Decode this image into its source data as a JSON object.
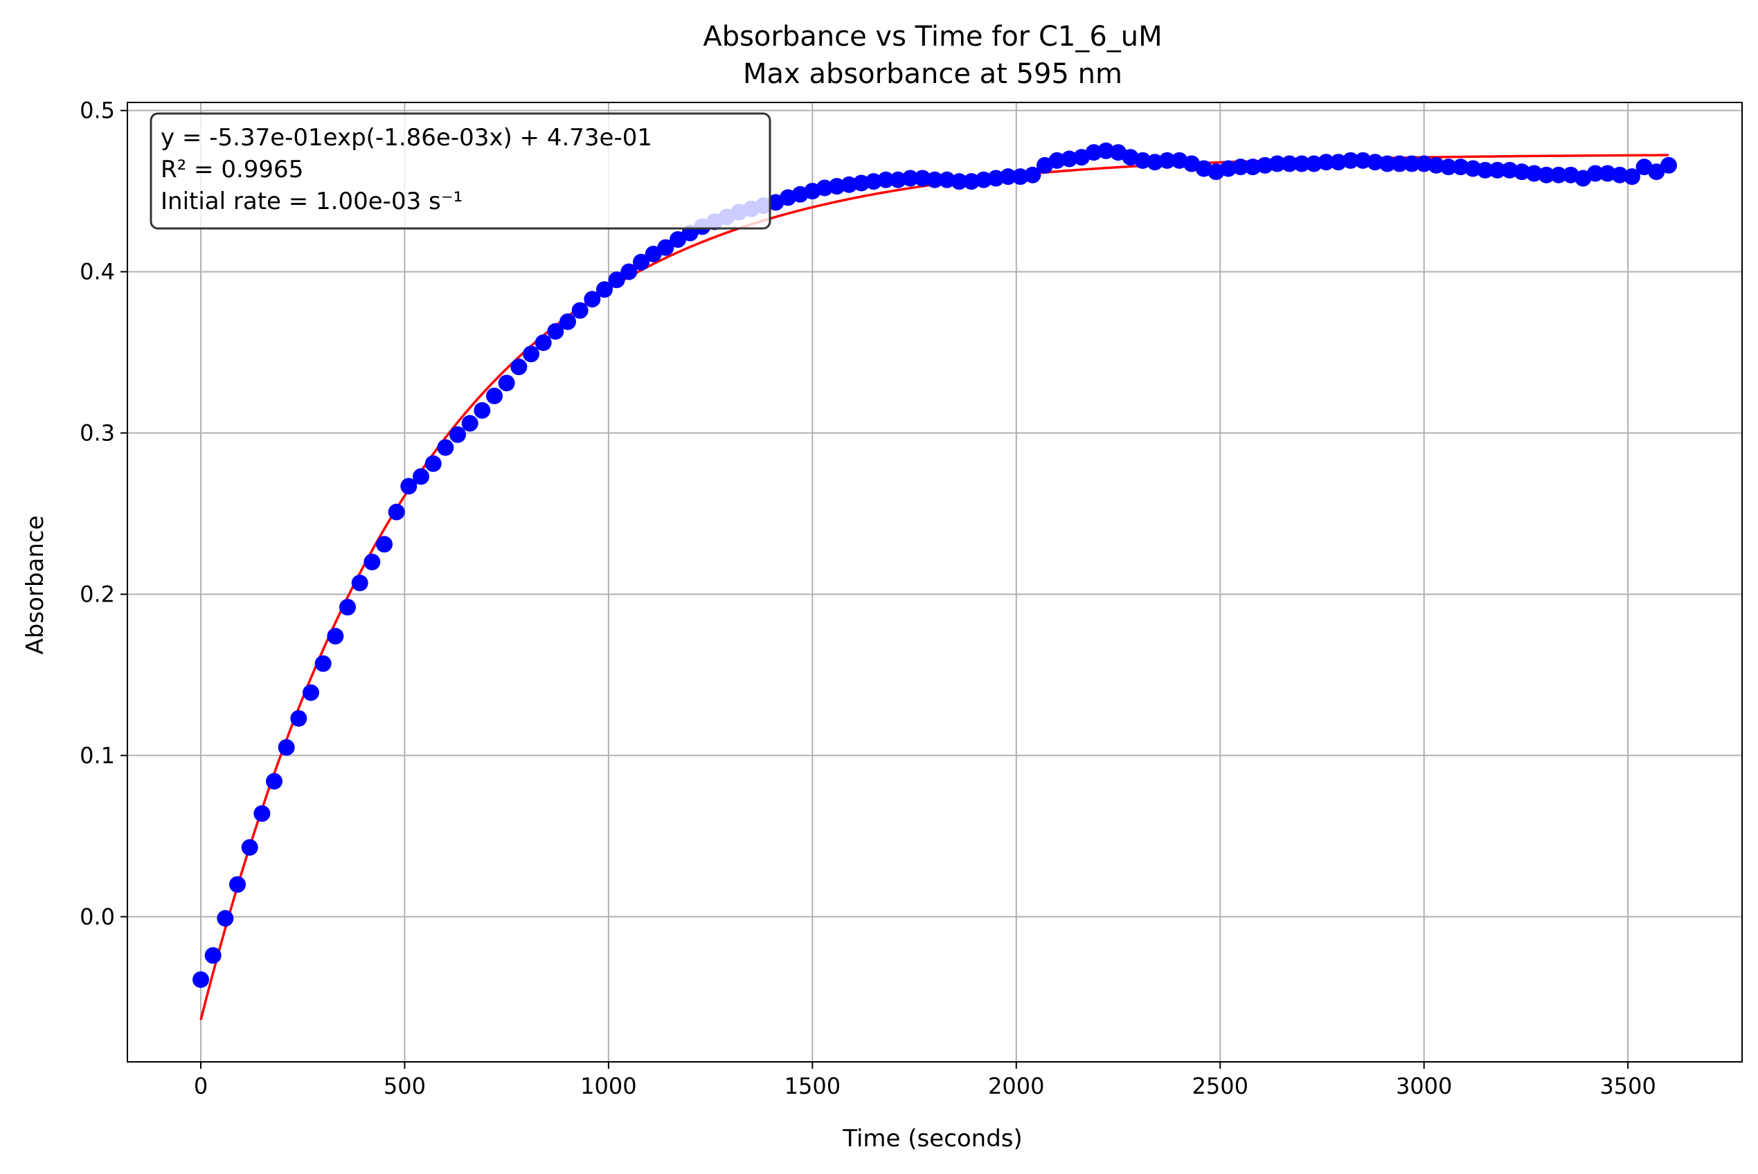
{
  "chart_data": {
    "type": "scatter",
    "title": "Absorbance vs Time for C1_6_uM",
    "subtitle": "Max absorbance at 595 nm",
    "xlabel": "Time (seconds)",
    "ylabel": "Absorbance",
    "xlim": [
      -180,
      3780
    ],
    "ylim": [
      -0.09,
      0.505
    ],
    "xticks": [
      0,
      500,
      1000,
      1500,
      2000,
      2500,
      3000,
      3500
    ],
    "xtick_labels": [
      "0",
      "500",
      "1000",
      "1500",
      "2000",
      "2500",
      "3000",
      "3500"
    ],
    "yticks": [
      0.0,
      0.1,
      0.2,
      0.3,
      0.4,
      0.5
    ],
    "ytick_labels": [
      "0.0",
      "0.1",
      "0.2",
      "0.3",
      "0.4",
      "0.5"
    ],
    "grid": true,
    "annotation": {
      "position": "top-left",
      "lines": [
        "y = -5.37e-01exp(-1.86e-03x) + 4.73e-01",
        "R² = 0.9965",
        "Initial rate = 1.00e-03 s⁻¹"
      ]
    },
    "series": [
      {
        "kind": "scatter",
        "color": "#0000ff",
        "points": [
          [
            0,
            -0.039
          ],
          [
            30,
            -0.024
          ],
          [
            60,
            -0.001
          ],
          [
            90,
            0.02
          ],
          [
            120,
            0.043
          ],
          [
            150,
            0.064
          ],
          [
            180,
            0.084
          ],
          [
            210,
            0.105
          ],
          [
            240,
            0.123
          ],
          [
            270,
            0.139
          ],
          [
            300,
            0.157
          ],
          [
            330,
            0.174
          ],
          [
            360,
            0.192
          ],
          [
            390,
            0.207
          ],
          [
            420,
            0.22
          ],
          [
            450,
            0.231
          ],
          [
            480,
            0.251
          ],
          [
            510,
            0.267
          ],
          [
            540,
            0.273
          ],
          [
            570,
            0.281
          ],
          [
            600,
            0.291
          ],
          [
            630,
            0.299
          ],
          [
            660,
            0.306
          ],
          [
            690,
            0.314
          ],
          [
            720,
            0.323
          ],
          [
            750,
            0.331
          ],
          [
            780,
            0.341
          ],
          [
            810,
            0.349
          ],
          [
            840,
            0.356
          ],
          [
            870,
            0.363
          ],
          [
            900,
            0.369
          ],
          [
            930,
            0.376
          ],
          [
            960,
            0.383
          ],
          [
            990,
            0.389
          ],
          [
            1020,
            0.395
          ],
          [
            1050,
            0.4
          ],
          [
            1080,
            0.406
          ],
          [
            1110,
            0.411
          ],
          [
            1140,
            0.415
          ],
          [
            1170,
            0.42
          ],
          [
            1200,
            0.424
          ],
          [
            1230,
            0.428
          ],
          [
            1260,
            0.431
          ],
          [
            1290,
            0.434
          ],
          [
            1320,
            0.437
          ],
          [
            1350,
            0.439
          ],
          [
            1380,
            0.441
          ],
          [
            1410,
            0.443
          ],
          [
            1440,
            0.446
          ],
          [
            1470,
            0.448
          ],
          [
            1500,
            0.45
          ],
          [
            1530,
            0.452
          ],
          [
            1560,
            0.453
          ],
          [
            1590,
            0.454
          ],
          [
            1620,
            0.455
          ],
          [
            1650,
            0.456
          ],
          [
            1680,
            0.457
          ],
          [
            1710,
            0.457
          ],
          [
            1740,
            0.458
          ],
          [
            1770,
            0.458
          ],
          [
            1800,
            0.457
          ],
          [
            1830,
            0.457
          ],
          [
            1860,
            0.456
          ],
          [
            1890,
            0.456
          ],
          [
            1920,
            0.457
          ],
          [
            1950,
            0.458
          ],
          [
            1980,
            0.459
          ],
          [
            2010,
            0.459
          ],
          [
            2040,
            0.46
          ],
          [
            2070,
            0.466
          ],
          [
            2100,
            0.469
          ],
          [
            2130,
            0.47
          ],
          [
            2160,
            0.471
          ],
          [
            2190,
            0.474
          ],
          [
            2220,
            0.475
          ],
          [
            2250,
            0.474
          ],
          [
            2280,
            0.471
          ],
          [
            2310,
            0.469
          ],
          [
            2340,
            0.468
          ],
          [
            2370,
            0.469
          ],
          [
            2400,
            0.469
          ],
          [
            2430,
            0.467
          ],
          [
            2460,
            0.464
          ],
          [
            2490,
            0.462
          ],
          [
            2520,
            0.464
          ],
          [
            2550,
            0.465
          ],
          [
            2580,
            0.465
          ],
          [
            2610,
            0.466
          ],
          [
            2640,
            0.467
          ],
          [
            2670,
            0.467
          ],
          [
            2700,
            0.467
          ],
          [
            2730,
            0.467
          ],
          [
            2760,
            0.468
          ],
          [
            2790,
            0.468
          ],
          [
            2820,
            0.469
          ],
          [
            2850,
            0.469
          ],
          [
            2880,
            0.468
          ],
          [
            2910,
            0.467
          ],
          [
            2940,
            0.467
          ],
          [
            2970,
            0.467
          ],
          [
            3000,
            0.467
          ],
          [
            3030,
            0.466
          ],
          [
            3060,
            0.465
          ],
          [
            3090,
            0.465
          ],
          [
            3120,
            0.464
          ],
          [
            3150,
            0.463
          ],
          [
            3180,
            0.463
          ],
          [
            3210,
            0.463
          ],
          [
            3240,
            0.462
          ],
          [
            3270,
            0.461
          ],
          [
            3300,
            0.46
          ],
          [
            3330,
            0.46
          ],
          [
            3360,
            0.46
          ],
          [
            3390,
            0.458
          ],
          [
            3420,
            0.461
          ],
          [
            3450,
            0.461
          ],
          [
            3480,
            0.46
          ],
          [
            3510,
            0.459
          ],
          [
            3540,
            0.465
          ],
          [
            3570,
            0.462
          ],
          [
            3600,
            0.466
          ]
        ]
      },
      {
        "kind": "fit-line",
        "color": "#ff0000",
        "function": "y = -5.37e-01exp(-1.86e-03x) + 4.73e-01",
        "a": -0.537,
        "k": 0.00186,
        "c": 0.473,
        "x_range": [
          0,
          3600
        ]
      }
    ]
  }
}
